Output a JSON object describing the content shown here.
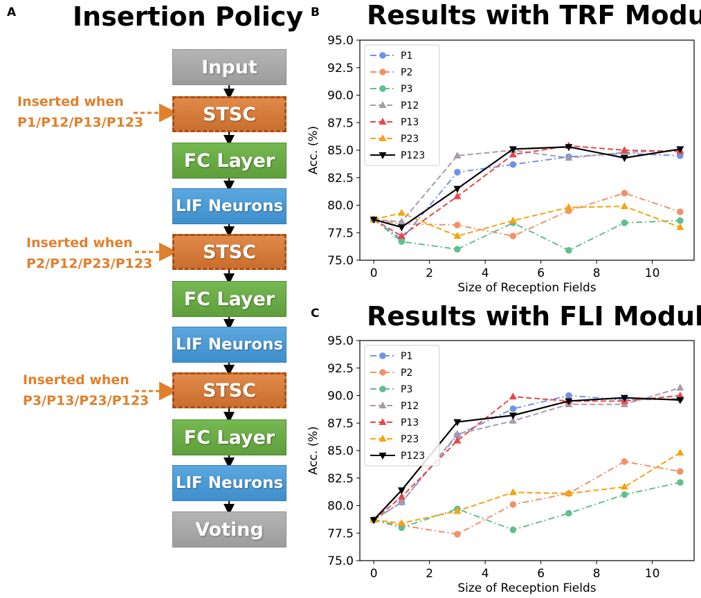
{
  "panelA": {
    "letter": "A",
    "title": "Insertion Policy",
    "blocks": [
      "Input",
      "STSC",
      "FC Layer",
      "LIF Neurons",
      "STSC",
      "FC Layer",
      "LIF Neurons",
      "STSC",
      "FC Layer",
      "LIF Neurons",
      "Voting"
    ],
    "notes": [
      {
        "line1": "Inserted when",
        "line2": "P1/P12/P13/P123"
      },
      {
        "line1": "Inserted when",
        "line2": "P2/P12/P23/P123"
      },
      {
        "line1": "Inserted when",
        "line2": "P3/P13/P23/P123"
      }
    ],
    "colors": {
      "gray": "#a6a6a6",
      "orange": "#d17a3a",
      "green": "#6aab47",
      "blue": "#4a9ad6",
      "note": "#e0802c"
    }
  },
  "chart_data": [
    {
      "panel": "B",
      "type": "line",
      "title": "Results with TRF Module",
      "xlabel": "Size of Reception Fields",
      "ylabel": "Acc. (%)",
      "x": [
        0,
        1,
        3,
        5,
        7,
        9,
        11
      ],
      "xlim": [
        -0.5,
        11.5
      ],
      "ylim": [
        75.0,
        95.0
      ],
      "xticks": [
        0,
        2,
        4,
        6,
        8,
        10
      ],
      "yticks": [
        "75.0",
        "77.5",
        "80.0",
        "82.5",
        "85.0",
        "87.5",
        "90.0",
        "92.5",
        "95.0"
      ],
      "legend_position": "top-left",
      "series": [
        {
          "name": "P1",
          "color": "#6f93e6",
          "dash": "dashdot",
          "marker": "circle",
          "values": [
            78.7,
            76.9,
            83.0,
            83.7,
            84.4,
            84.7,
            84.5
          ]
        },
        {
          "name": "P2",
          "color": "#f0916a",
          "dash": "dashdot",
          "marker": "circle",
          "values": [
            78.7,
            78.3,
            78.2,
            77.2,
            79.5,
            81.1,
            79.4
          ]
        },
        {
          "name": "P3",
          "color": "#5fbf8f",
          "dash": "dashdot",
          "marker": "circle",
          "values": [
            78.7,
            76.7,
            76.0,
            78.4,
            75.9,
            78.4,
            78.6
          ]
        },
        {
          "name": "P12",
          "color": "#a89aa8",
          "dash": "dashed",
          "marker": "triangle",
          "values": [
            78.7,
            78.5,
            84.5,
            85.0,
            84.3,
            84.8,
            85.0
          ]
        },
        {
          "name": "P13",
          "color": "#e8474a",
          "dash": "dashed",
          "marker": "triangle",
          "values": [
            78.7,
            77.2,
            80.8,
            84.6,
            85.4,
            85.0,
            84.9
          ]
        },
        {
          "name": "P23",
          "color": "#f5a30f",
          "dash": "dashed",
          "marker": "triangle",
          "values": [
            78.7,
            79.3,
            77.2,
            78.6,
            79.8,
            79.9,
            78.0
          ]
        },
        {
          "name": "P123",
          "color": "#000000",
          "dash": "solid",
          "marker": "triangle-down",
          "values": [
            78.7,
            78.0,
            81.5,
            85.1,
            85.3,
            84.3,
            85.1
          ]
        }
      ]
    },
    {
      "panel": "C",
      "type": "line",
      "title": "Results with FLI Module",
      "xlabel": "Size of Reception Fields",
      "ylabel": "Acc. (%)",
      "x": [
        0,
        1,
        3,
        5,
        7,
        9,
        11
      ],
      "xlim": [
        -0.5,
        11.5
      ],
      "ylim": [
        75.0,
        95.0
      ],
      "xticks": [
        0,
        2,
        4,
        6,
        8,
        10
      ],
      "yticks": [
        "75.0",
        "77.5",
        "80.0",
        "82.5",
        "85.0",
        "87.5",
        "90.0",
        "92.5",
        "95.0"
      ],
      "legend_position": "top-left",
      "series": [
        {
          "name": "P1",
          "color": "#6f93e6",
          "dash": "dashdot",
          "marker": "circle",
          "values": [
            78.7,
            80.3,
            86.4,
            88.8,
            90.0,
            89.6,
            89.7
          ]
        },
        {
          "name": "P2",
          "color": "#f0916a",
          "dash": "dashdot",
          "marker": "circle",
          "values": [
            78.7,
            78.2,
            77.4,
            80.1,
            81.1,
            84.0,
            83.1
          ]
        },
        {
          "name": "P3",
          "color": "#5fbf8f",
          "dash": "dashdot",
          "marker": "circle",
          "values": [
            78.7,
            78.0,
            79.7,
            77.8,
            79.3,
            81.0,
            82.1
          ]
        },
        {
          "name": "P12",
          "color": "#a89aa8",
          "dash": "dashed",
          "marker": "triangle",
          "values": [
            78.7,
            80.3,
            86.5,
            87.7,
            89.2,
            89.2,
            90.7
          ]
        },
        {
          "name": "P13",
          "color": "#e8474a",
          "dash": "dashed",
          "marker": "triangle",
          "values": [
            78.7,
            80.8,
            85.9,
            89.9,
            89.5,
            89.5,
            90.0
          ]
        },
        {
          "name": "P23",
          "color": "#f5a30f",
          "dash": "dashed",
          "marker": "triangle",
          "values": [
            78.7,
            78.4,
            79.5,
            81.2,
            81.1,
            81.7,
            84.8
          ]
        },
        {
          "name": "P123",
          "color": "#000000",
          "dash": "solid",
          "marker": "triangle-down",
          "values": [
            78.7,
            81.4,
            87.6,
            88.2,
            89.5,
            89.8,
            89.6
          ]
        }
      ]
    }
  ]
}
